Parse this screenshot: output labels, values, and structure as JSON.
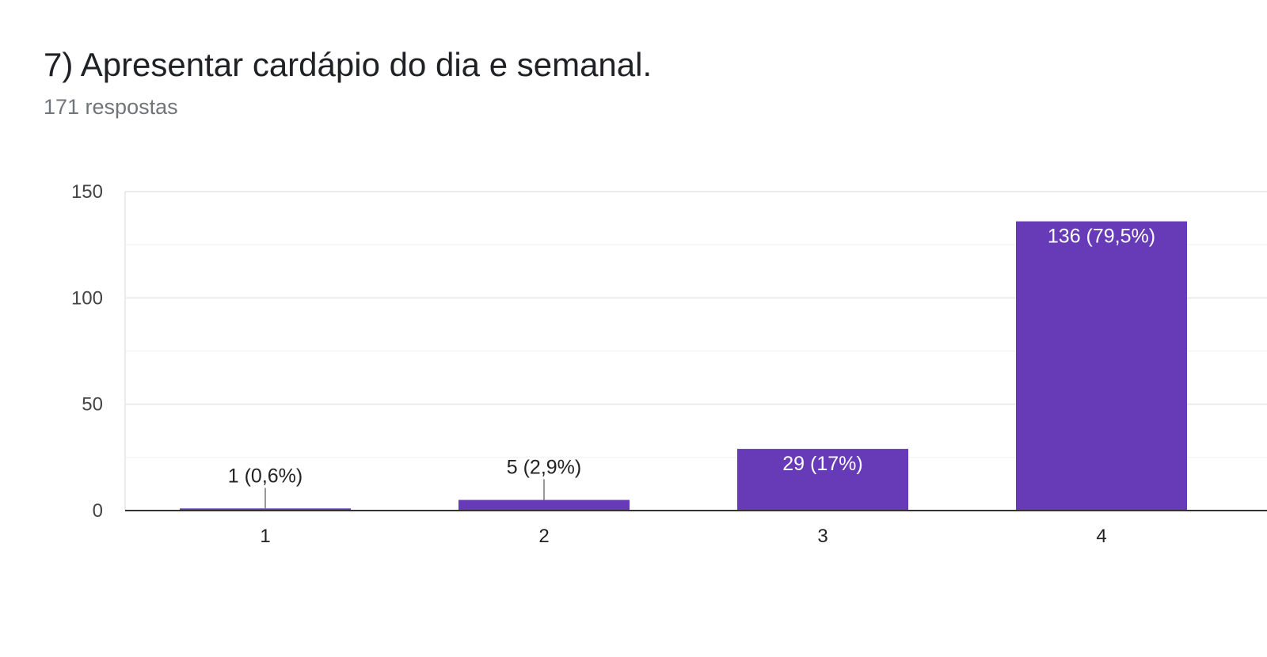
{
  "header": {
    "title": "7) Apresentar cardápio do dia e semanal.",
    "subtitle": "171 respostas"
  },
  "colors": {
    "bar": "#673ab7",
    "grid": "#ebebeb",
    "minor_grid": "#f5f5f5",
    "axis": "#333333",
    "label_inside": "#ffffff",
    "label_outside": "#222222",
    "leader": "#999999"
  },
  "chart_data": {
    "type": "bar",
    "categories": [
      "1",
      "2",
      "3",
      "4"
    ],
    "values": [
      1,
      5,
      29,
      136
    ],
    "data_labels": [
      "1 (0,6%)",
      "5 (2,9%)",
      "29 (17%)",
      "136 (79,5%)"
    ],
    "yticks": [
      "0",
      "50",
      "100",
      "150"
    ],
    "ylim": [
      0,
      150
    ],
    "grid": true,
    "title": "7) Apresentar cardápio do dia e semanal.",
    "xlabel": "",
    "ylabel": ""
  }
}
